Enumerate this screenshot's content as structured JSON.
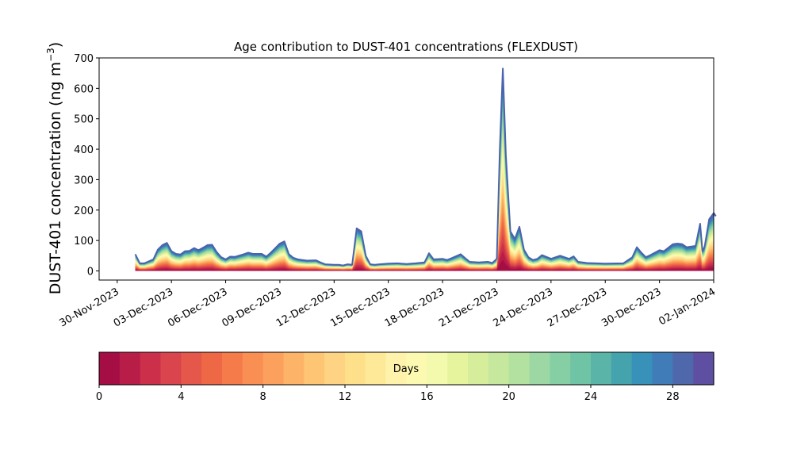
{
  "chart_data": {
    "type": "area",
    "title": "Age contribution to DUST-401 concentrations (FLEXDUST)",
    "ylabel": "DUST-401 concentration (ng m",
    "ylabel_sup": "−3",
    "ylabel_close": ")",
    "xlim": [
      "2023-11-29",
      "2024-01-02"
    ],
    "ylim": [
      -30,
      700
    ],
    "yticks": [
      0,
      100,
      200,
      300,
      400,
      500,
      600,
      700
    ],
    "xtick_labels": [
      "30-Nov-2023",
      "03-Dec-2023",
      "06-Dec-2023",
      "09-Dec-2023",
      "12-Dec-2023",
      "15-Dec-2023",
      "18-Dec-2023",
      "21-Dec-2023",
      "24-Dec-2023",
      "27-Dec-2023",
      "30-Dec-2023",
      "02-Jan-2024"
    ],
    "xtick_dates": [
      "2023-11-30",
      "2023-12-03",
      "2023-12-06",
      "2023-12-09",
      "2023-12-12",
      "2023-12-15",
      "2023-12-18",
      "2023-12-21",
      "2023-12-24",
      "2023-12-27",
      "2023-12-30",
      "2024-01-02"
    ],
    "total_concentration": [
      [
        "2023-12-01T00:00",
        55
      ],
      [
        "2023-12-01T06:00",
        25
      ],
      [
        "2023-12-01T12:00",
        25
      ],
      [
        "2023-12-02T00:00",
        38
      ],
      [
        "2023-12-02T06:00",
        70
      ],
      [
        "2023-12-02T12:00",
        85
      ],
      [
        "2023-12-02T18:00",
        92
      ],
      [
        "2023-12-03T00:00",
        65
      ],
      [
        "2023-12-03T06:00",
        56
      ],
      [
        "2023-12-03T12:00",
        54
      ],
      [
        "2023-12-03T18:00",
        65
      ],
      [
        "2023-12-04T00:00",
        66
      ],
      [
        "2023-12-04T06:00",
        75
      ],
      [
        "2023-12-04T12:00",
        68
      ],
      [
        "2023-12-05T00:00",
        85
      ],
      [
        "2023-12-05T06:00",
        86
      ],
      [
        "2023-12-05T12:00",
        62
      ],
      [
        "2023-12-05T18:00",
        45
      ],
      [
        "2023-12-06T00:00",
        38
      ],
      [
        "2023-12-06T06:00",
        47
      ],
      [
        "2023-12-06T12:00",
        46
      ],
      [
        "2023-12-07T00:00",
        55
      ],
      [
        "2023-12-07T06:00",
        60
      ],
      [
        "2023-12-07T12:00",
        56
      ],
      [
        "2023-12-08T00:00",
        56
      ],
      [
        "2023-12-08T06:00",
        47
      ],
      [
        "2023-12-08T12:00",
        60
      ],
      [
        "2023-12-09T00:00",
        90
      ],
      [
        "2023-12-09T06:00",
        97
      ],
      [
        "2023-12-09T12:00",
        55
      ],
      [
        "2023-12-09T18:00",
        43
      ],
      [
        "2023-12-10T00:00",
        38
      ],
      [
        "2023-12-10T06:00",
        36
      ],
      [
        "2023-12-10T12:00",
        34
      ],
      [
        "2023-12-11T00:00",
        35
      ],
      [
        "2023-12-11T06:00",
        28
      ],
      [
        "2023-12-11T12:00",
        22
      ],
      [
        "2023-12-12T00:00",
        20
      ],
      [
        "2023-12-12T06:00",
        20
      ],
      [
        "2023-12-12T12:00",
        18
      ],
      [
        "2023-12-12T18:00",
        22
      ],
      [
        "2023-12-13T00:00",
        20
      ],
      [
        "2023-12-13T06:00",
        140
      ],
      [
        "2023-12-13T12:00",
        130
      ],
      [
        "2023-12-13T18:00",
        50
      ],
      [
        "2023-12-14T00:00",
        22
      ],
      [
        "2023-12-14T06:00",
        20
      ],
      [
        "2023-12-14T12:00",
        22
      ],
      [
        "2023-12-15T00:00",
        24
      ],
      [
        "2023-12-15T12:00",
        25
      ],
      [
        "2023-12-16T00:00",
        23
      ],
      [
        "2023-12-16T12:00",
        25
      ],
      [
        "2023-12-17T00:00",
        28
      ],
      [
        "2023-12-17T06:00",
        58
      ],
      [
        "2023-12-17T12:00",
        38
      ],
      [
        "2023-12-18T00:00",
        40
      ],
      [
        "2023-12-18T06:00",
        36
      ],
      [
        "2023-12-18T12:00",
        42
      ],
      [
        "2023-12-19T00:00",
        55
      ],
      [
        "2023-12-19T06:00",
        42
      ],
      [
        "2023-12-19T12:00",
        30
      ],
      [
        "2023-12-20T00:00",
        28
      ],
      [
        "2023-12-20T12:00",
        30
      ],
      [
        "2023-12-20T18:00",
        26
      ],
      [
        "2023-12-21T00:00",
        40
      ],
      [
        "2023-12-21T04:00",
        400
      ],
      [
        "2023-12-21T08:00",
        665
      ],
      [
        "2023-12-21T12:00",
        380
      ],
      [
        "2023-12-21T18:00",
        130
      ],
      [
        "2023-12-22T00:00",
        105
      ],
      [
        "2023-12-22T06:00",
        145
      ],
      [
        "2023-12-22T12:00",
        70
      ],
      [
        "2023-12-22T18:00",
        45
      ],
      [
        "2023-12-23T00:00",
        36
      ],
      [
        "2023-12-23T06:00",
        40
      ],
      [
        "2023-12-23T12:00",
        52
      ],
      [
        "2023-12-24T00:00",
        40
      ],
      [
        "2023-12-24T12:00",
        50
      ],
      [
        "2023-12-25T00:00",
        40
      ],
      [
        "2023-12-25T06:00",
        48
      ],
      [
        "2023-12-25T12:00",
        30
      ],
      [
        "2023-12-26T00:00",
        26
      ],
      [
        "2023-12-26T12:00",
        25
      ],
      [
        "2023-12-27T00:00",
        24
      ],
      [
        "2023-12-28T00:00",
        25
      ],
      [
        "2023-12-28T12:00",
        45
      ],
      [
        "2023-12-28T18:00",
        78
      ],
      [
        "2023-12-29T00:00",
        60
      ],
      [
        "2023-12-29T06:00",
        45
      ],
      [
        "2023-12-29T12:00",
        52
      ],
      [
        "2023-12-30T00:00",
        68
      ],
      [
        "2023-12-30T06:00",
        65
      ],
      [
        "2023-12-30T18:00",
        88
      ],
      [
        "2023-12-31T00:00",
        90
      ],
      [
        "2023-12-31T06:00",
        88
      ],
      [
        "2023-12-31T12:00",
        78
      ],
      [
        "2024-01-01T00:00",
        82
      ],
      [
        "2024-01-01T06:00",
        155
      ],
      [
        "2024-01-01T09:00",
        65
      ],
      [
        "2024-01-01T12:00",
        80
      ],
      [
        "2024-01-01T18:00",
        170
      ],
      [
        "2024-01-02T00:00",
        190
      ],
      [
        "2024-01-02T03:00",
        180
      ]
    ],
    "colorbar": {
      "label": "Days",
      "min": 0,
      "max": 30,
      "ticks": [
        0,
        4,
        8,
        12,
        16,
        20,
        24,
        28
      ],
      "colors": [
        "#a50d45",
        "#b81d48",
        "#cb2f4a",
        "#d9444d",
        "#e4574a",
        "#ee6845",
        "#f57b4a",
        "#f98f53",
        "#fca15d",
        "#fdb468",
        "#fec574",
        "#fed384",
        "#fee08b",
        "#fee999",
        "#fff3ac",
        "#fcf9b0",
        "#f3faad",
        "#e6f59d",
        "#d6ee9b",
        "#c5e79e",
        "#b2e1a0",
        "#9dd7a4",
        "#86cfa5",
        "#6fc4a5",
        "#5ab4a8",
        "#45a3ad",
        "#3791b9",
        "#3f7cb8",
        "#4f68ac",
        "#5e4fa2"
      ]
    }
  }
}
